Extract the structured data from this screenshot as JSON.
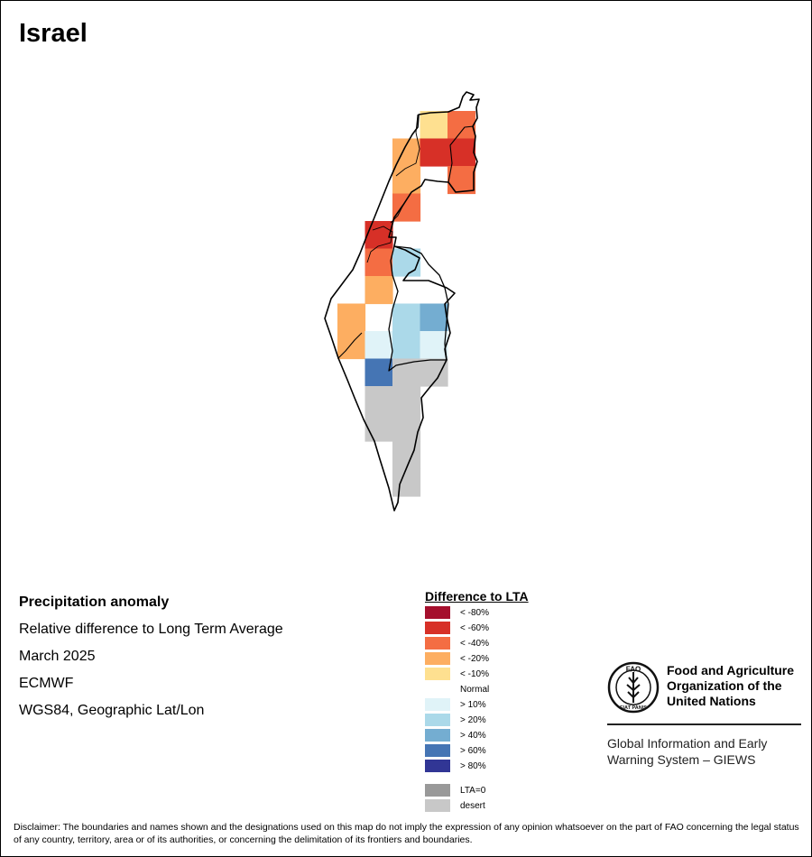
{
  "map": {
    "title": "Israel",
    "cells": [
      {
        "lon": 35.6,
        "lat": 33.25,
        "cat": "lt10"
      },
      {
        "lon": 35.85,
        "lat": 33.25,
        "cat": "lt40"
      },
      {
        "lon": 35.35,
        "lat": 33.0,
        "cat": "lt20"
      },
      {
        "lon": 35.6,
        "lat": 33.0,
        "cat": "lt60"
      },
      {
        "lon": 35.85,
        "lat": 33.0,
        "cat": "lt60"
      },
      {
        "lon": 35.35,
        "lat": 32.75,
        "cat": "lt20"
      },
      {
        "lon": 35.85,
        "lat": 32.75,
        "cat": "lt40"
      },
      {
        "lon": 35.35,
        "lat": 32.5,
        "cat": "lt40"
      },
      {
        "lon": 35.1,
        "lat": 32.25,
        "cat": "lt60"
      },
      {
        "lon": 35.1,
        "lat": 32.0,
        "cat": "lt40"
      },
      {
        "lon": 35.35,
        "lat": 32.0,
        "cat": "gt20"
      },
      {
        "lon": 35.1,
        "lat": 31.75,
        "cat": "lt20"
      },
      {
        "lon": 34.85,
        "lat": 31.5,
        "cat": "lt20"
      },
      {
        "lon": 35.35,
        "lat": 31.5,
        "cat": "gt20"
      },
      {
        "lon": 35.6,
        "lat": 31.5,
        "cat": "gt40"
      },
      {
        "lon": 34.85,
        "lat": 31.25,
        "cat": "lt20"
      },
      {
        "lon": 35.1,
        "lat": 31.25,
        "cat": "gt10"
      },
      {
        "lon": 35.35,
        "lat": 31.25,
        "cat": "gt20"
      },
      {
        "lon": 35.6,
        "lat": 31.25,
        "cat": "gt10"
      },
      {
        "lon": 35.1,
        "lat": 31.0,
        "cat": "gt60"
      },
      {
        "lon": 35.35,
        "lat": 31.0,
        "cat": "desert"
      },
      {
        "lon": 35.6,
        "lat": 31.0,
        "cat": "desert"
      },
      {
        "lon": 35.1,
        "lat": 30.75,
        "cat": "desert"
      },
      {
        "lon": 35.35,
        "lat": 30.75,
        "cat": "desert"
      },
      {
        "lon": 35.1,
        "lat": 30.5,
        "cat": "desert"
      },
      {
        "lon": 35.35,
        "lat": 30.5,
        "cat": "desert"
      },
      {
        "lon": 35.35,
        "lat": 30.25,
        "cat": "desert"
      },
      {
        "lon": 35.35,
        "lat": 30.0,
        "cat": "desert"
      }
    ]
  },
  "info": {
    "heading": "Precipitation anomaly",
    "subtitle": "Relative difference to Long Term Average",
    "period": "March 2025",
    "source": "ECMWF",
    "projection": "WGS84, Geographic Lat/Lon"
  },
  "legend": {
    "title": "Difference to LTA",
    "items": [
      {
        "key": "lt80",
        "label": "< -80%",
        "color": "#a50f2d"
      },
      {
        "key": "lt60",
        "label": "< -60%",
        "color": "#d73027"
      },
      {
        "key": "lt40",
        "label": "< -40%",
        "color": "#f46d43"
      },
      {
        "key": "lt20",
        "label": "< -20%",
        "color": "#fdae61"
      },
      {
        "key": "lt10",
        "label": "< -10%",
        "color": "#fee090"
      },
      {
        "key": "normal",
        "label": "Normal",
        "color": "#ffffff"
      },
      {
        "key": "gt10",
        "label": "> 10%",
        "color": "#e0f3f8"
      },
      {
        "key": "gt20",
        "label": "> 20%",
        "color": "#abd9e9"
      },
      {
        "key": "gt40",
        "label": "> 40%",
        "color": "#74add1"
      },
      {
        "key": "gt60",
        "label": "> 60%",
        "color": "#4575b4"
      },
      {
        "key": "gt80",
        "label": "> 80%",
        "color": "#313695"
      },
      {
        "key": "lta0",
        "label": "LTA=0",
        "color": "#999999"
      },
      {
        "key": "desert",
        "label": "desert",
        "color": "#c8c8c8"
      }
    ]
  },
  "org": {
    "name_line1": "Food and Agriculture",
    "name_line2": "Organization of the",
    "name_line3": "United Nations",
    "logo_text": "FAO",
    "logo_motto": "FIAT PANIS",
    "giews_line1": "Global Information and Early",
    "giews_line2": "Warning System – GIEWS"
  },
  "disclaimer": "Disclaimer: The boundaries and names shown and the designations used on this map do not imply the expression of any opinion whatsoever on the part of FAO concerning the legal status of any country, territory, area or of its authorities, or concerning the delimitation of its frontiers and boundaries."
}
